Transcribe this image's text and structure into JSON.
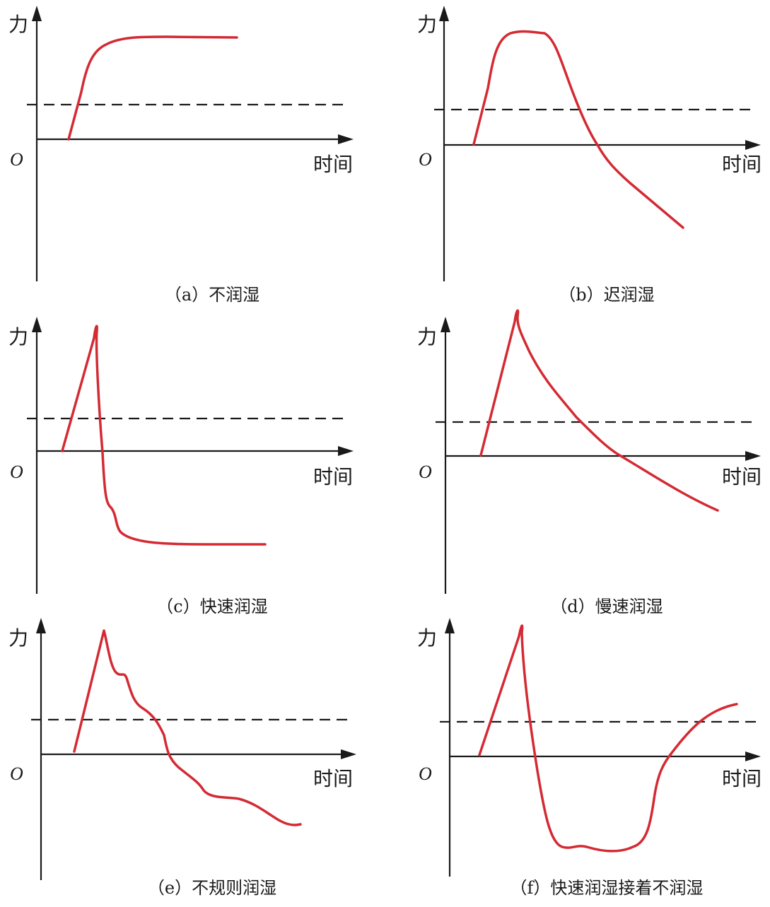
{
  "colors": {
    "curve": "#d42a33",
    "axis": "#1a1a1a"
  },
  "panels": [
    {
      "id": "a",
      "y_axis_label": "力",
      "x_axis_label": "时间",
      "origin_label": "O",
      "caption": "（a）不润湿"
    },
    {
      "id": "b",
      "y_axis_label": "力",
      "x_axis_label": "时间",
      "origin_label": "O",
      "caption": "（b）迟润湿"
    },
    {
      "id": "c",
      "y_axis_label": "力",
      "x_axis_label": "时间",
      "origin_label": "O",
      "caption": "（c）快速润湿"
    },
    {
      "id": "d",
      "y_axis_label": "力",
      "x_axis_label": "时间",
      "origin_label": "O",
      "caption": "（d）慢速润湿"
    },
    {
      "id": "e",
      "y_axis_label": "力",
      "x_axis_label": "时间",
      "origin_label": "O",
      "caption": "（e）不规则润湿"
    },
    {
      "id": "f",
      "y_axis_label": "力",
      "x_axis_label": "时间",
      "origin_label": "O",
      "caption": "（f）快速润湿接着不润湿"
    }
  ]
}
